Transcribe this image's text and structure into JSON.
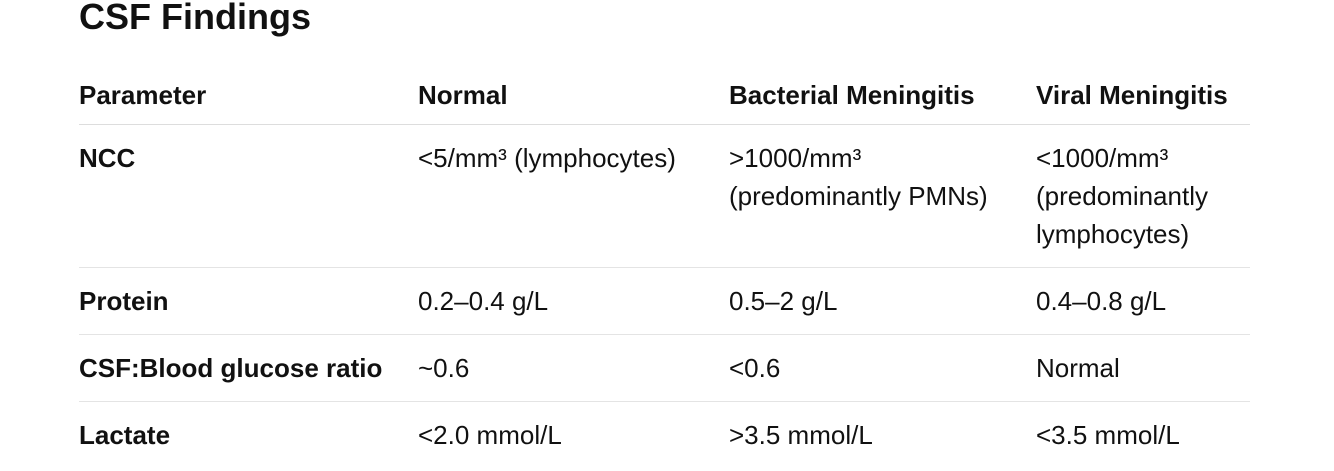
{
  "title": "CSF Findings",
  "table": {
    "header": [
      "Parameter",
      "Normal",
      "Bacterial Meningitis",
      "Viral Meningitis"
    ],
    "rows": [
      [
        "NCC",
        "<5/mm³ (lymphocytes)",
        ">1000/mm³ (predominantly PMNs)",
        "<1000/mm³ (predominantly lymphocytes)"
      ],
      [
        "Protein",
        "0.2–0.4 g/L",
        "0.5–2 g/L",
        "0.4–0.8 g/L"
      ],
      [
        "CSF:Blood glucose ratio",
        "~0.6",
        "<0.6",
        "Normal"
      ],
      [
        "Lactate",
        "<2.0 mmol/L",
        ">3.5 mmol/L",
        "<3.5 mmol/L"
      ]
    ]
  }
}
